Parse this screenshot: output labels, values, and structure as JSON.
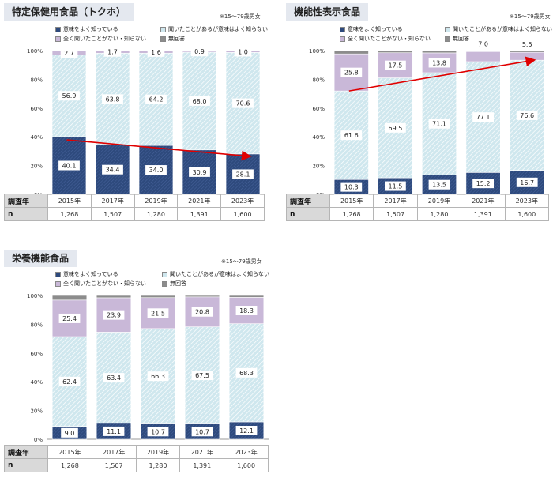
{
  "colors": {
    "dark": "#2e4a7d",
    "light": "#cfe7ee",
    "purple": "#c9b8d8",
    "gray": "#8c8c8c",
    "trend": "#e00000"
  },
  "legend_labels": [
    "意味をよく知っている",
    "聞いたことがあるが意味はよく知らない",
    "全く聞いたことがない・知らない",
    "無回答"
  ],
  "row_header_year": "調査年",
  "row_header_n": "n",
  "years": [
    "2015年",
    "2017年",
    "2019年",
    "2021年",
    "2023年"
  ],
  "n_values": [
    "1,268",
    "1,507",
    "1,280",
    "1,391",
    "1,600"
  ],
  "panels": [
    {
      "title": "特定保健用食品（トクホ）",
      "note": "※15～79歳男女"
    },
    {
      "title": "機能性表示食品",
      "note": "※15～79歳男女"
    },
    {
      "title": "栄養機能食品",
      "note": "※15～79歳男女"
    }
  ],
  "chart_data": [
    {
      "type": "bar",
      "stacked": true,
      "title": "特定保健用食品（トクホ）",
      "categories": [
        "2015年",
        "2017年",
        "2019年",
        "2021年",
        "2023年"
      ],
      "ylim": [
        0,
        100
      ],
      "yticks": [
        "0%",
        "20%",
        "40%",
        "60%",
        "80%",
        "100%"
      ],
      "series": [
        {
          "name": "意味をよく知っている",
          "values": [
            40.1,
            34.4,
            34.0,
            30.9,
            28.1
          ],
          "labels": [
            "40.1",
            "34.4",
            "34.0",
            "30.9",
            "28.1"
          ]
        },
        {
          "name": "聞いたことがあるが意味はよく知らない",
          "values": [
            56.9,
            63.8,
            64.2,
            68.0,
            70.6
          ],
          "labels": [
            "56.9",
            "63.8",
            "64.2",
            "68.0",
            "70.6"
          ]
        },
        {
          "name": "全く聞いたことがない・知らない",
          "values": [
            2.7,
            1.7,
            1.6,
            0.9,
            1.0
          ],
          "labels": [
            "2.7",
            "1.7",
            "1.6",
            "0.9",
            "1.0"
          ]
        },
        {
          "name": "無回答",
          "values": [
            0.3,
            0.1,
            0.2,
            0.2,
            0.3
          ],
          "labels": [
            "",
            "",
            "",
            "",
            ""
          ]
        }
      ],
      "trend_series": 0,
      "label_out": []
    },
    {
      "type": "bar",
      "stacked": true,
      "title": "機能性表示食品",
      "categories": [
        "2015年",
        "2017年",
        "2019年",
        "2021年",
        "2023年"
      ],
      "ylim": [
        0,
        100
      ],
      "yticks": [
        "0%",
        "20%",
        "40%",
        "60%",
        "80%",
        "100%"
      ],
      "series": [
        {
          "name": "意味をよく知っている",
          "values": [
            10.3,
            11.5,
            13.5,
            15.2,
            16.7
          ],
          "labels": [
            "10.3",
            "11.5",
            "13.5",
            "15.2",
            "16.7"
          ]
        },
        {
          "name": "聞いたことがあるが意味はよく知らない",
          "values": [
            61.6,
            69.5,
            71.1,
            77.1,
            76.6
          ],
          "labels": [
            "61.6",
            "69.5",
            "71.1",
            "77.1",
            "76.6"
          ]
        },
        {
          "name": "全く聞いたことがない・知らない",
          "values": [
            25.8,
            17.5,
            13.8,
            7.0,
            5.5
          ],
          "labels": [
            "25.8",
            "17.5",
            "13.8",
            "7.0",
            "5.5"
          ]
        },
        {
          "name": "無回答",
          "values": [
            2.3,
            1.5,
            1.6,
            0.7,
            1.2
          ],
          "labels": [
            "",
            "",
            "",
            "",
            ""
          ]
        }
      ],
      "trend_series": 1,
      "label_out": [
        3,
        4
      ]
    },
    {
      "type": "bar",
      "stacked": true,
      "title": "栄養機能食品",
      "categories": [
        "2015年",
        "2017年",
        "2019年",
        "2021年",
        "2023年"
      ],
      "ylim": [
        0,
        100
      ],
      "yticks": [
        "0%",
        "20%",
        "40%",
        "60%",
        "80%",
        "100%"
      ],
      "series": [
        {
          "name": "意味をよく知っている",
          "values": [
            9.0,
            11.1,
            10.7,
            10.7,
            12.1
          ],
          "labels": [
            "9.0",
            "11.1",
            "10.7",
            "10.7",
            "12.1"
          ]
        },
        {
          "name": "聞いたことがあるが意味はよく知らない",
          "values": [
            62.4,
            63.4,
            66.3,
            67.5,
            68.3
          ],
          "labels": [
            "62.4",
            "63.4",
            "66.3",
            "67.5",
            "68.3"
          ]
        },
        {
          "name": "全く聞いたことがない・知らない",
          "values": [
            25.4,
            23.9,
            21.5,
            20.8,
            18.3
          ],
          "labels": [
            "25.4",
            "23.9",
            "21.5",
            "20.8",
            "18.3"
          ]
        },
        {
          "name": "無回答",
          "values": [
            3.2,
            1.6,
            1.5,
            1.0,
            1.3
          ],
          "labels": [
            "",
            "",
            "",
            "",
            ""
          ]
        }
      ],
      "trend_series": -1,
      "label_out": []
    }
  ]
}
